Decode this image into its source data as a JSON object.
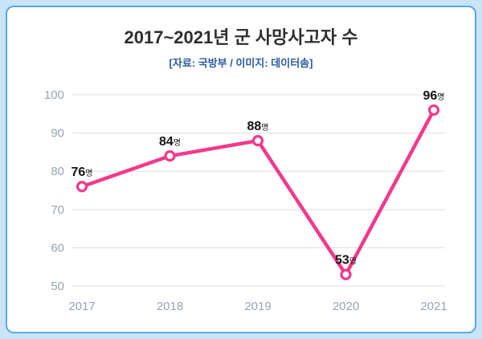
{
  "page": {
    "title": "2017~2021년 군 사망사고자 수",
    "subtitle": "[자료: 국방부 / 이미지: 데이터솜]"
  },
  "colors": {
    "page_bg": "#c9e4f8",
    "border": "#57a8ea",
    "card_bg": "#ffffff",
    "line": "#f23a8c",
    "marker_fill": "#ffffff",
    "grid": "#e2e6ea",
    "tick": "#97a5b3",
    "label": "#141414",
    "subtitle": "#2b5ba4"
  },
  "chart_data": {
    "type": "line",
    "title": "2017~2021년 군 사망사고자 수",
    "source_note": "[자료: 국방부 / 이미지: 데이터솜]",
    "categories": [
      "2017",
      "2018",
      "2019",
      "2020",
      "2021"
    ],
    "values": [
      76,
      84,
      88,
      53,
      96
    ],
    "unit": "명",
    "xlabel": "",
    "ylabel": "",
    "ylim": [
      50,
      100
    ],
    "ytick_step": 10,
    "grid": true,
    "legend": false
  }
}
